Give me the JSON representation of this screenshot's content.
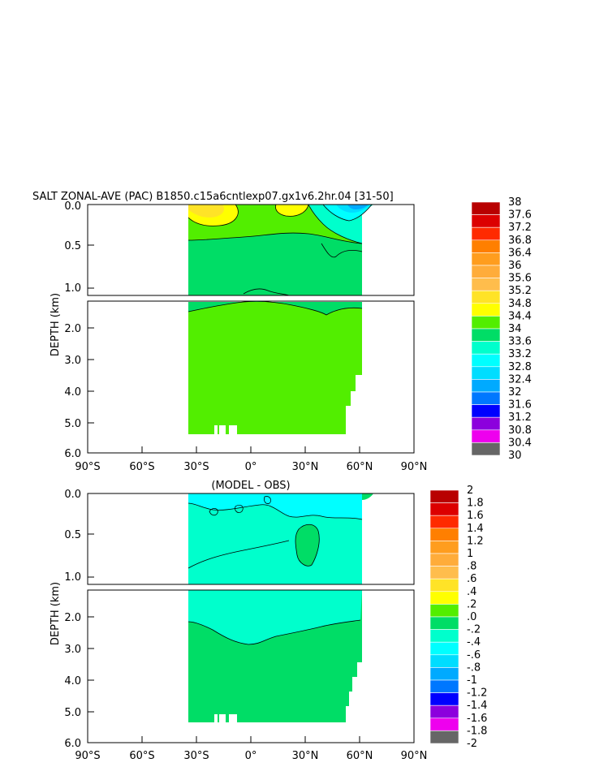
{
  "chart_data": [
    {
      "type": "heatmap",
      "title": "SALT ZONAL-AVE (PAC) B1850.c15a6cntlexp07.gx1v6.2hr.04  [31-50]",
      "ylabel": "DEPTH (km)",
      "xlabel": "",
      "x_ticks": [
        "90°S",
        "60°S",
        "30°S",
        "0°",
        "30°N",
        "60°N",
        "90°N"
      ],
      "y_ticks_upper": [
        "0.0",
        "0.5",
        "1.0"
      ],
      "y_ticks_lower": [
        "2.0",
        "3.0",
        "4.0",
        "5.0",
        "6.0"
      ],
      "xlim": [
        -90,
        90
      ],
      "ylim_km": [
        0,
        6
      ],
      "y_axis_break_km": 1.1,
      "colorbar_labels": [
        "38",
        "37.6",
        "37.2",
        "36.8",
        "36.4",
        "36",
        "35.6",
        "35.2",
        "34.8",
        "34.4",
        "34",
        "33.6",
        "33.2",
        "32.8",
        "32.4",
        "32",
        "31.6",
        "31.2",
        "30.8",
        "30.4",
        "30"
      ],
      "colorbar_colors": [
        "#b80000",
        "#dc0000",
        "#ff2a00",
        "#ff7f00",
        "#ff9d1e",
        "#ffac3a",
        "#ffbd4c",
        "#ffe327",
        "#ffff00",
        "#52ee00",
        "#00dd66",
        "#00ffcc",
        "#00ffff",
        "#00ddff",
        "#00aaff",
        "#0077ff",
        "#0000ff",
        "#8c00dd",
        "#ee00ee",
        "#cccccc",
        "#666666"
      ]
    },
    {
      "type": "heatmap",
      "title": "(MODEL - OBS)",
      "ylabel": "DEPTH (km)",
      "xlabel": "",
      "x_ticks": [
        "90°S",
        "60°S",
        "30°S",
        "0°",
        "30°N",
        "60°N",
        "90°N"
      ],
      "y_ticks_upper": [
        "0.0",
        "0.5",
        "1.0"
      ],
      "y_ticks_lower": [
        "2.0",
        "3.0",
        "4.0",
        "5.0",
        "6.0"
      ],
      "xlim": [
        -90,
        90
      ],
      "ylim_km": [
        0,
        6
      ],
      "y_axis_break_km": 1.1,
      "colorbar_labels": [
        "2",
        "1.8",
        "1.6",
        "1.4",
        "1.2",
        "1",
        ".8",
        ".6",
        ".4",
        ".2",
        ".0",
        "-.2",
        "-.4",
        "-.6",
        "-.8",
        "-1",
        "-1.2",
        "-1.4",
        "-1.6",
        "-1.8",
        "-2"
      ],
      "colorbar_colors": [
        "#b80000",
        "#dc0000",
        "#ff2a00",
        "#ff7f00",
        "#ff9d1e",
        "#ffac3a",
        "#ffbd4c",
        "#ffe327",
        "#ffff00",
        "#52ee00",
        "#00dd66",
        "#00ffcc",
        "#00ffff",
        "#00ddff",
        "#00aaff",
        "#0077ff",
        "#0000ff",
        "#8c00dd",
        "#ee00ee",
        "#cccccc",
        "#666666"
      ]
    }
  ]
}
